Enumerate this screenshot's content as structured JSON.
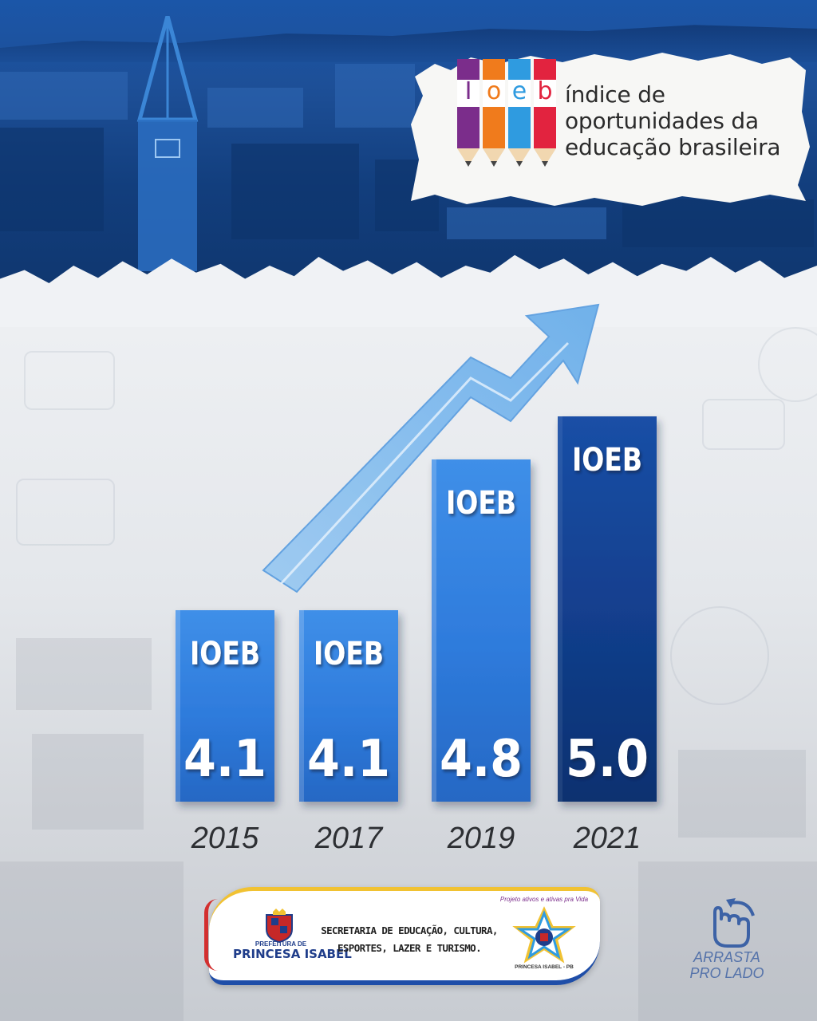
{
  "header": {
    "logo_letters": [
      "I",
      "o",
      "e",
      "b"
    ],
    "tagline": [
      "índice de",
      "oportunidades da",
      "educação brasileira"
    ]
  },
  "colors": {
    "pencil_1": "#7b2d8b",
    "pencil_2": "#f07b1c",
    "pencil_3": "#2f9be0",
    "pencil_4": "#e2233f",
    "bar_light": "#2f7fe0",
    "bar_dark": "#0f3c8c",
    "arrow": "#7fb8ee"
  },
  "chart_data": {
    "type": "bar",
    "categories": [
      "2015",
      "2017",
      "2019",
      "2021"
    ],
    "series": [
      {
        "values": [
          4.1,
          4.1,
          4.8,
          5.0
        ],
        "labels": [
          "4.1",
          "4.1",
          "4.8",
          "5.0"
        ]
      }
    ],
    "bar_title": "IOEB",
    "highlight_category": "2021",
    "trend_arrow": "up"
  },
  "footer": {
    "prefeitura_small": "PREFEITURA DE",
    "prefeitura_name": "PRINCESA ISABEL",
    "secretaria_lines": [
      "SECRETARIA DE EDUCAÇÃO, CULTURA,",
      "ESPORTES, LAZER E TURISMO."
    ],
    "secretaria_motto": "Projeto ativos e ativas pra Vida",
    "secretaria_city": "PRINCESA ISABEL - PB"
  },
  "swipe_hint": [
    "ARRASTA",
    "PRO LADO"
  ]
}
